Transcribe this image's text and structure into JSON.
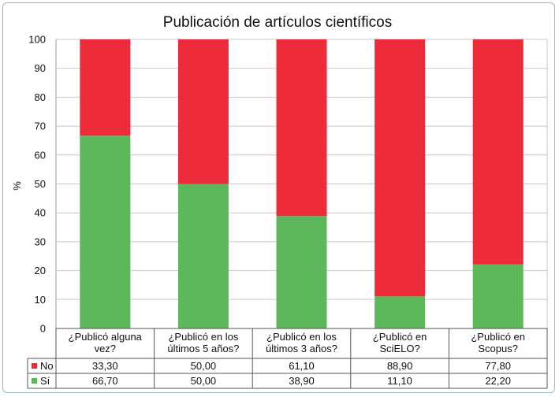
{
  "chart_data": {
    "type": "bar",
    "stacked": true,
    "title": "Publicación de artículos científicos",
    "ylabel": "%",
    "ylim": [
      0,
      100
    ],
    "yticks": [
      "0",
      "10",
      "20",
      "30",
      "40",
      "50",
      "60",
      "70",
      "80",
      "90",
      "100"
    ],
    "grid": true,
    "categories": [
      [
        "¿Publicó alguna",
        "vez?"
      ],
      [
        "¿Publicó en los",
        "últimos 5 años?"
      ],
      [
        "¿Publicó en los",
        "últimos 3 años?"
      ],
      [
        "¿Publicó en",
        "SciELO?"
      ],
      [
        "¿Publicó en",
        "Scopus?"
      ]
    ],
    "series": [
      {
        "name": "Sí",
        "color": "#5cb85a",
        "values": [
          66.7,
          50.0,
          38.9,
          11.1,
          22.2
        ],
        "labels": [
          "66,70",
          "50,00",
          "38,90",
          "11,10",
          "22,20"
        ]
      },
      {
        "name": "No",
        "color": "#ee2b3b",
        "values": [
          33.3,
          50.0,
          61.1,
          88.9,
          77.8
        ],
        "labels": [
          "33,30",
          "50,00",
          "61,10",
          "88,90",
          "77,80"
        ]
      }
    ],
    "table_rows": [
      "No",
      "Sí"
    ]
  }
}
